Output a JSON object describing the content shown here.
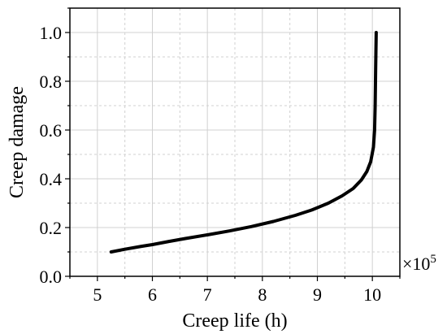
{
  "chart_data": {
    "type": "line",
    "title": "",
    "xlabel": "Creep life (h)",
    "ylabel": "Creep damage",
    "x_multiplier": "×10",
    "x_multiplier_exponent": "5",
    "xlim": [
      4.5,
      10.5
    ],
    "ylim": [
      0.0,
      1.1
    ],
    "xticks": [
      "5",
      "6",
      "7",
      "8",
      "9",
      "10"
    ],
    "yticks": [
      "0.0",
      "0.2",
      "0.4",
      "0.6",
      "0.8",
      "1.0"
    ],
    "grid": true,
    "legend": "none",
    "colors": {
      "line": "#000000",
      "grid": "#d0d0d0",
      "axis": "#000000"
    },
    "series": [
      {
        "x": [
          5.25,
          5.5,
          5.8,
          6.0,
          6.3,
          6.6,
          7.0,
          7.4,
          7.8,
          8.2,
          8.6,
          8.9,
          9.2,
          9.45,
          9.65,
          9.8,
          9.9,
          9.97,
          10.02,
          10.04,
          10.05,
          10.06,
          10.07
        ],
        "y": [
          0.1,
          0.111,
          0.123,
          0.13,
          0.143,
          0.155,
          0.17,
          0.186,
          0.204,
          0.225,
          0.25,
          0.272,
          0.3,
          0.33,
          0.36,
          0.395,
          0.43,
          0.47,
          0.53,
          0.6,
          0.7,
          0.85,
          1.0
        ]
      }
    ]
  }
}
